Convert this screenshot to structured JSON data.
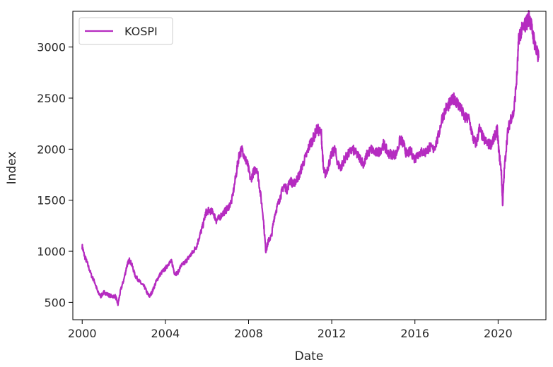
{
  "chart_data": {
    "type": "line",
    "xlabel": "Date",
    "ylabel": "Index",
    "xlim": [
      1999.55,
      2022.3
    ],
    "ylim": [
      330,
      3350
    ],
    "x_ticks": [
      2000,
      2004,
      2008,
      2012,
      2016,
      2020
    ],
    "x_tick_labels": [
      "2000",
      "2004",
      "2008",
      "2012",
      "2016",
      "2020"
    ],
    "y_ticks": [
      500,
      1000,
      1500,
      2000,
      2500,
      3000
    ],
    "y_tick_labels": [
      "500",
      "1000",
      "1500",
      "2000",
      "2500",
      "3000"
    ],
    "grid": false,
    "legend_position": "top-left",
    "series": [
      {
        "name": "KOSPI",
        "color": "#b52bc0",
        "x": [
          2000.0,
          2000.1,
          2000.25,
          2000.45,
          2000.6,
          2000.75,
          2000.9,
          2001.05,
          2001.2,
          2001.4,
          2001.6,
          2001.72,
          2001.85,
          2002.0,
          2002.15,
          2002.28,
          2002.4,
          2002.55,
          2002.7,
          2002.85,
          2003.0,
          2003.15,
          2003.25,
          2003.4,
          2003.55,
          2003.7,
          2003.85,
          2004.0,
          2004.15,
          2004.3,
          2004.45,
          2004.6,
          2004.75,
          2004.9,
          2005.05,
          2005.2,
          2005.35,
          2005.5,
          2005.65,
          2005.8,
          2005.95,
          2006.1,
          2006.3,
          2006.45,
          2006.6,
          2006.8,
          2007.0,
          2007.2,
          2007.4,
          2007.55,
          2007.7,
          2007.85,
          2007.95,
          2008.1,
          2008.25,
          2008.4,
          2008.55,
          2008.7,
          2008.83,
          2008.95,
          2009.1,
          2009.25,
          2009.4,
          2009.55,
          2009.7,
          2009.85,
          2010.0,
          2010.15,
          2010.3,
          2010.45,
          2010.6,
          2010.8,
          2010.95,
          2011.1,
          2011.3,
          2011.5,
          2011.6,
          2011.7,
          2011.85,
          2012.0,
          2012.15,
          2012.3,
          2012.45,
          2012.6,
          2012.8,
          2013.0,
          2013.2,
          2013.4,
          2013.55,
          2013.7,
          2013.9,
          2014.1,
          2014.3,
          2014.5,
          2014.7,
          2014.9,
          2015.1,
          2015.3,
          2015.45,
          2015.6,
          2015.8,
          2016.0,
          2016.1,
          2016.3,
          2016.5,
          2016.7,
          2016.9,
          2017.1,
          2017.3,
          2017.5,
          2017.7,
          2017.9,
          2018.05,
          2018.2,
          2018.4,
          2018.6,
          2018.8,
          2018.95,
          2019.1,
          2019.3,
          2019.5,
          2019.65,
          2019.8,
          2019.95,
          2020.05,
          2020.15,
          2020.22,
          2020.3,
          2020.45,
          2020.6,
          2020.75,
          2020.9,
          2021.0,
          2021.1,
          2021.25,
          2021.4,
          2021.5,
          2021.6,
          2021.75,
          2021.85,
          2021.95
        ],
        "values": [
          1050,
          960,
          880,
          760,
          700,
          600,
          560,
          600,
          580,
          560,
          560,
          480,
          620,
          720,
          860,
          920,
          860,
          760,
          720,
          680,
          650,
          580,
          560,
          620,
          700,
          760,
          800,
          830,
          880,
          900,
          780,
          790,
          860,
          880,
          920,
          960,
          1000,
          1050,
          1150,
          1250,
          1380,
          1400,
          1380,
          1300,
          1330,
          1380,
          1420,
          1500,
          1750,
          1950,
          2000,
          1900,
          1850,
          1700,
          1780,
          1820,
          1600,
          1350,
          1000,
          1100,
          1150,
          1350,
          1450,
          1550,
          1650,
          1600,
          1700,
          1650,
          1700,
          1750,
          1850,
          1950,
          2050,
          2100,
          2200,
          2150,
          1800,
          1750,
          1850,
          1950,
          2000,
          1850,
          1820,
          1900,
          1950,
          2000,
          1950,
          1900,
          1850,
          1950,
          2000,
          1960,
          1980,
          2050,
          1960,
          1950,
          1950,
          2100,
          2050,
          1950,
          1980,
          1900,
          1950,
          1970,
          1970,
          2020,
          2000,
          2100,
          2300,
          2400,
          2450,
          2500,
          2450,
          2400,
          2300,
          2300,
          2100,
          2050,
          2200,
          2100,
          2050,
          2050,
          2100,
          2200,
          1950,
          1800,
          1460,
          1800,
          2150,
          2300,
          2350,
          2700,
          3100,
          3150,
          3200,
          3250,
          3300,
          3200,
          3050,
          2950,
          2900
        ]
      }
    ]
  }
}
